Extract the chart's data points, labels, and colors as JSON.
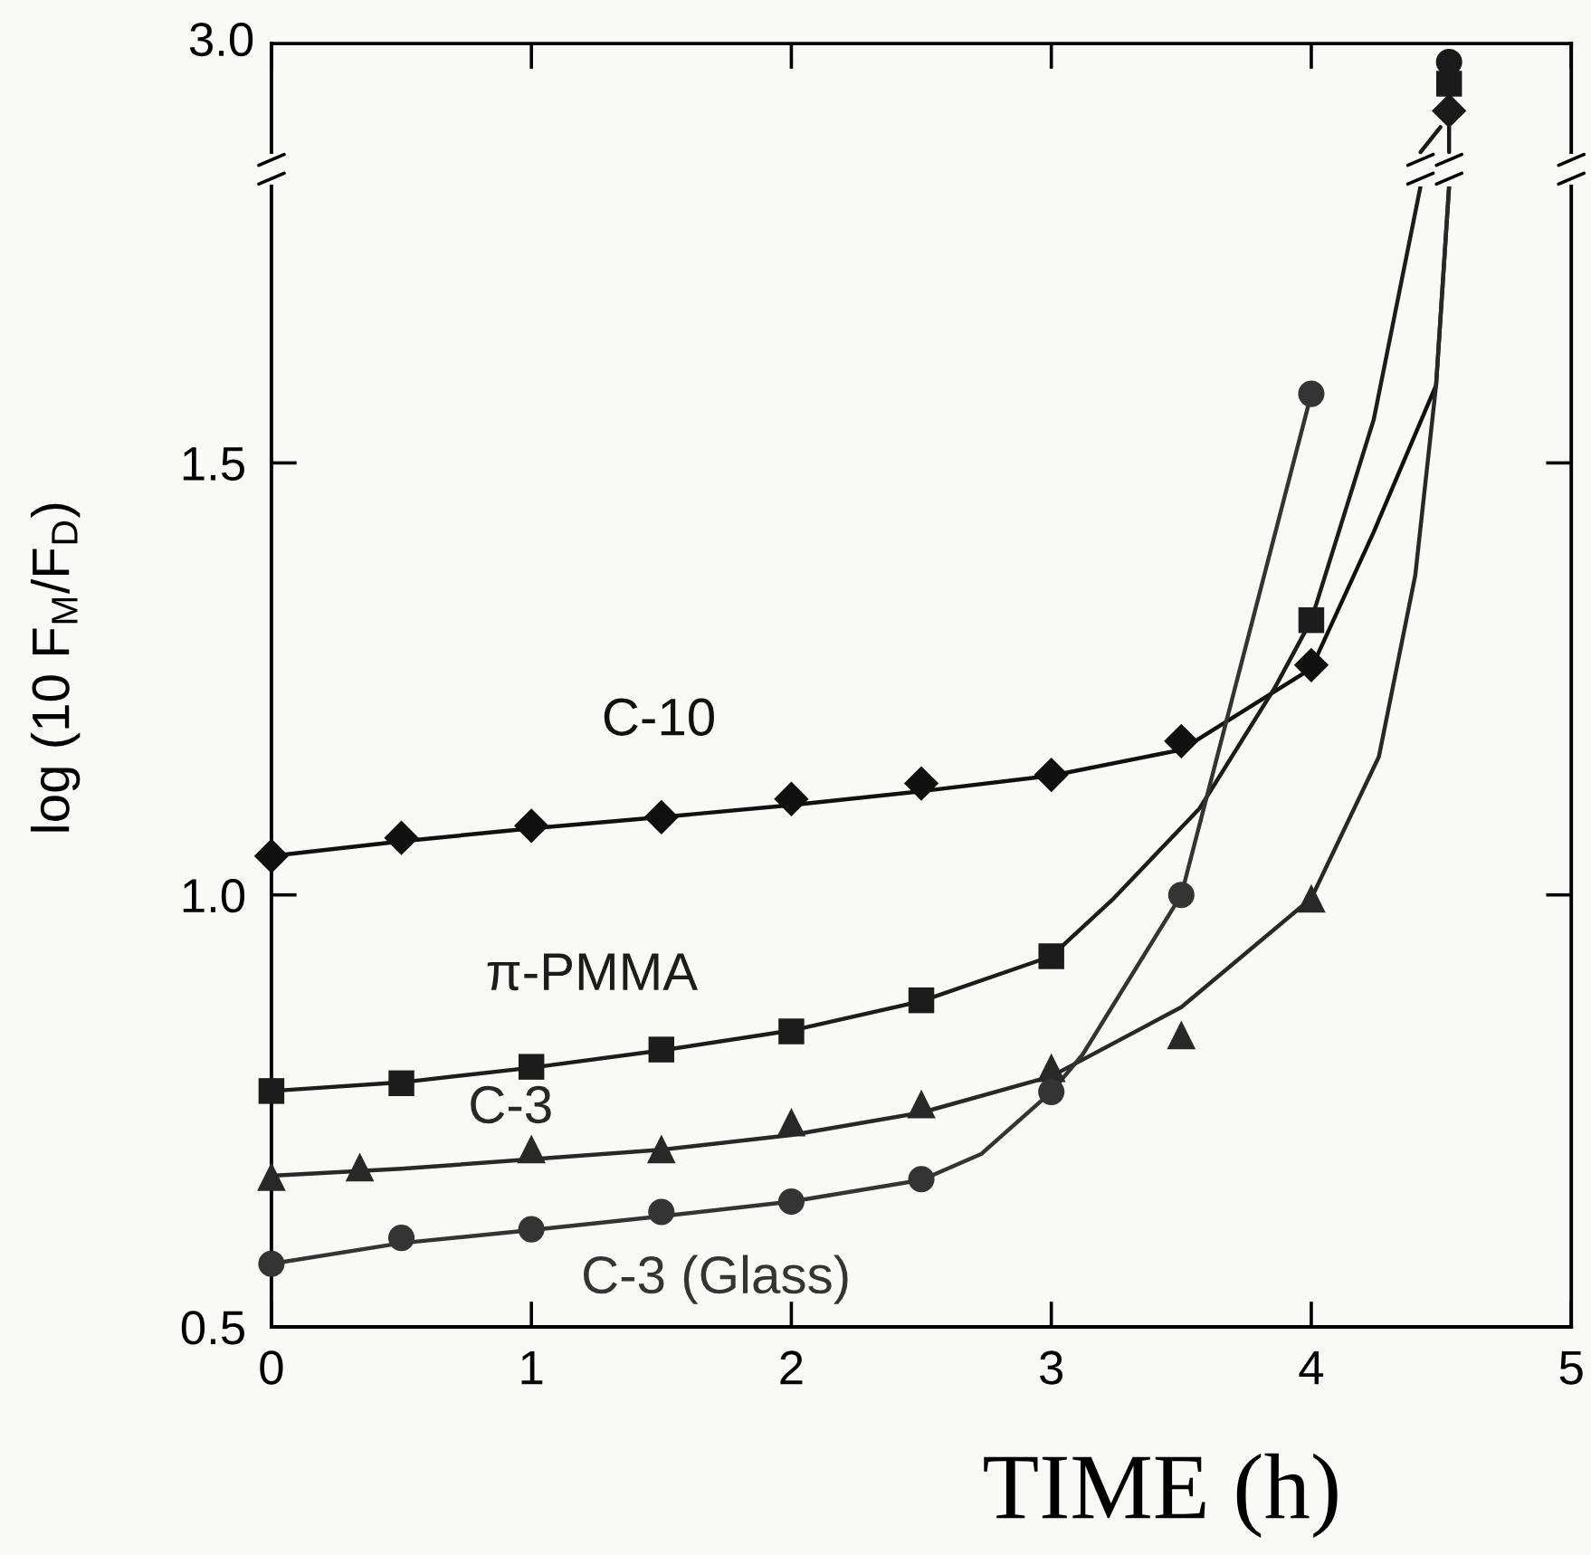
{
  "chart_data": [
    {
      "type": "other",
      "annotations": [
        "3.0"
      ]
    },
    {
      "type": "scatter",
      "xlabel": "TIME (h)",
      "ylabel": "log (10 F$_{M}$/F$_{D}$)",
      "xlim": [
        0,
        5
      ],
      "xticks": [
        0,
        1,
        2,
        3,
        4,
        5
      ],
      "ylim": [
        0.5,
        1.82
      ],
      "yticks": [
        0.5,
        {
          "value": 1,
          "label": "1.0"
        },
        1.5
      ],
      "series": [
        {
          "name": "C-10",
          "marker": "diamond",
          "color": "#101010",
          "x": [
            0,
            0.5,
            1,
            1.5,
            2,
            2.5,
            3,
            3.5,
            4
          ],
          "values": [
            1.045,
            1.066,
            1.08,
            1.09,
            1.111,
            1.129,
            1.139,
            1.178,
            1.266
          ]
        },
        {
          "name": "π-PMMA",
          "marker": "square",
          "color": "#1c1c1c",
          "x": [
            0,
            0.5,
            1,
            1.5,
            2,
            2.5,
            3,
            4
          ],
          "values": [
            0.773,
            0.782,
            0.801,
            0.821,
            0.842,
            0.878,
            0.929,
            1.318
          ]
        },
        {
          "name": "C-3",
          "marker": "triangle",
          "color": "#282828",
          "x": [
            0,
            0.34,
            1,
            1.5,
            2,
            2.5,
            3,
            3.5,
            4
          ],
          "values": [
            0.674,
            0.685,
            0.706,
            0.706,
            0.737,
            0.758,
            0.8,
            0.838,
            0.996
          ]
        },
        {
          "name": "C-3 (Glass)",
          "marker": "circle",
          "color": "#343434",
          "x": [
            0,
            0.5,
            1,
            1.5,
            2,
            2.5,
            3,
            3.5,
            4
          ],
          "values": [
            0.573,
            0.603,
            0.613,
            0.633,
            0.645,
            0.671,
            0.772,
            1.0,
            1.58
          ]
        },
        {
          "type": "line",
          "color": "#101010",
          "x": [
            0,
            0.5,
            1,
            1.5,
            2,
            2.5,
            3,
            3.5,
            4,
            4.24,
            4.48,
            4.53
          ],
          "values": [
            1.045,
            1.062,
            1.077,
            1.09,
            1.104,
            1.12,
            1.138,
            1.168,
            1.262,
            1.42,
            1.59,
            1.82
          ]
        },
        {
          "type": "line",
          "color": "#1c1c1c",
          "x": [
            0,
            0.5,
            1,
            1.5,
            2,
            2.5,
            3,
            3.24,
            3.57,
            3.86,
            4,
            4.24,
            4.42
          ],
          "values": [
            0.773,
            0.783,
            0.8,
            0.82,
            0.843,
            0.877,
            0.929,
            0.996,
            1.1,
            1.24,
            1.318,
            1.55,
            1.82
          ]
        },
        {
          "type": "line",
          "color": "#282828",
          "x": [
            0,
            0.5,
            1,
            1.5,
            2,
            2.5,
            3,
            3.5,
            4,
            4.26,
            4.4,
            4.48,
            4.53
          ],
          "values": [
            0.675,
            0.683,
            0.694,
            0.705,
            0.722,
            0.748,
            0.79,
            0.87,
            0.996,
            1.16,
            1.37,
            1.59,
            1.82
          ]
        },
        {
          "type": "line",
          "color": "#343434",
          "x": [
            0,
            0.5,
            1,
            1.5,
            2,
            2.5,
            2.73,
            3,
            3.12,
            3.5,
            4
          ],
          "values": [
            0.573,
            0.597,
            0.612,
            0.628,
            0.645,
            0.67,
            0.7,
            0.772,
            0.815,
            1.0,
            1.58
          ]
        }
      ]
    }
  ]
}
